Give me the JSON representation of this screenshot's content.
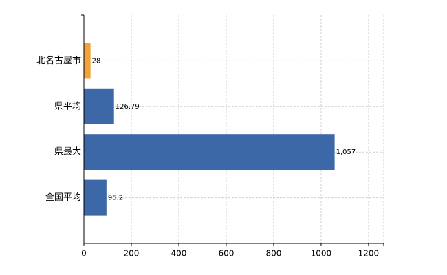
{
  "chart_data": {
    "type": "barh",
    "categories": [
      "北名古屋市",
      "県平均",
      "県最大",
      "全国平均"
    ],
    "values": [
      28,
      126.79,
      1057,
      95.2
    ],
    "value_labels": [
      "28",
      "126.79",
      "1,057",
      "95.2"
    ],
    "colors": [
      "#f0a23b",
      "#3d68a7",
      "#3d68a7",
      "#3d68a7"
    ],
    "xlim": [
      0,
      1264
    ],
    "xticks": [
      0,
      200,
      400,
      600,
      800,
      1000,
      1200
    ],
    "grid": true
  }
}
